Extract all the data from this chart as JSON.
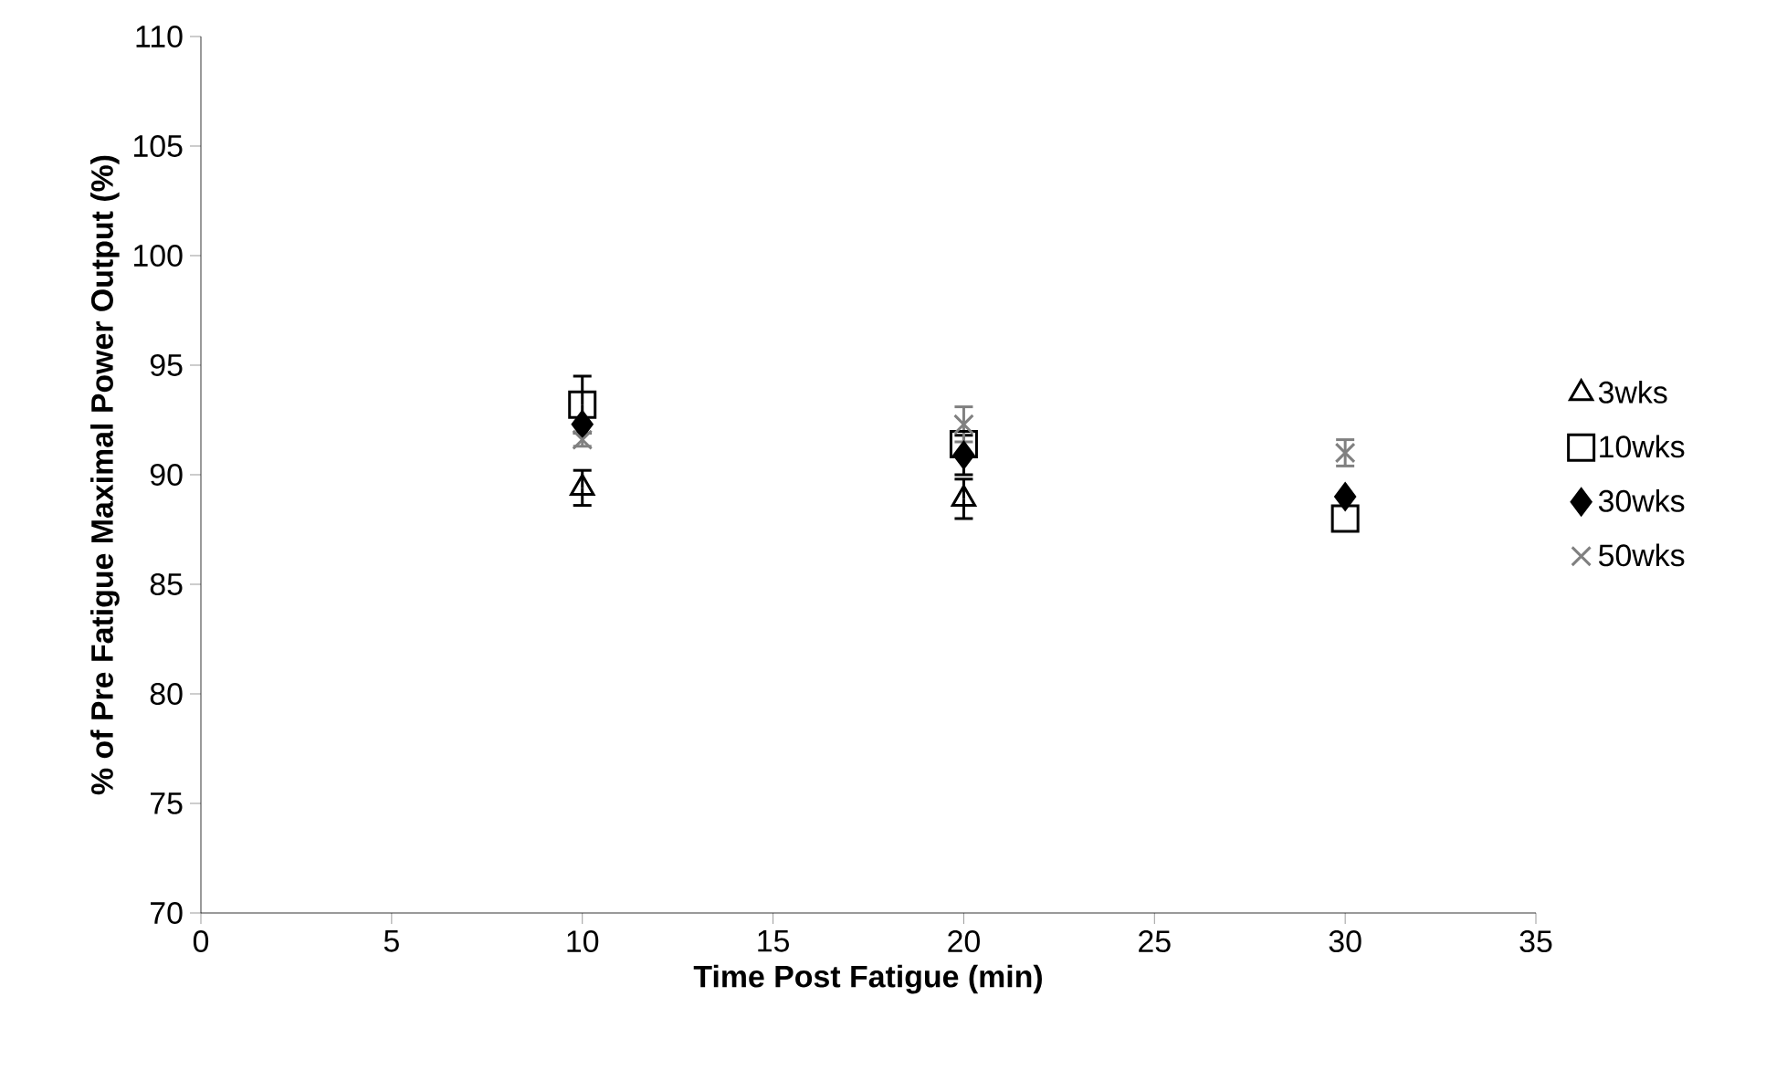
{
  "chart_data": {
    "type": "scatter",
    "xlabel": "Time Post Fatigue (min)",
    "ylabel": "% of Pre Fatigue Maximal Power Output (%)",
    "x": [
      10,
      20,
      30
    ],
    "series": [
      {
        "name": "3wks",
        "color": "#000000",
        "marker": "triangle",
        "values": [
          89.4,
          88.9,
          null
        ],
        "errors": [
          0.8,
          0.9,
          null
        ]
      },
      {
        "name": "10wks",
        "color": "#000000",
        "marker": "square",
        "values": [
          93.2,
          91.4,
          88.0
        ],
        "errors": [
          1.3,
          null,
          null
        ]
      },
      {
        "name": "30wks",
        "color": "#000000",
        "marker": "diamond",
        "values": [
          92.3,
          90.9,
          89.0
        ],
        "errors": [
          null,
          0.9,
          null
        ]
      },
      {
        "name": "50wks",
        "color": "#808080",
        "marker": "cross",
        "values": [
          91.6,
          92.3,
          91.0
        ],
        "errors": [
          0.3,
          0.8,
          0.6
        ]
      }
    ],
    "xlim": [
      0,
      35
    ],
    "xticks": [
      0,
      5,
      10,
      15,
      20,
      25,
      30,
      35
    ],
    "ylim": [
      70,
      110
    ],
    "yticks": [
      70,
      75,
      80,
      85,
      90,
      95,
      100,
      105,
      110
    ],
    "legend": "right"
  }
}
